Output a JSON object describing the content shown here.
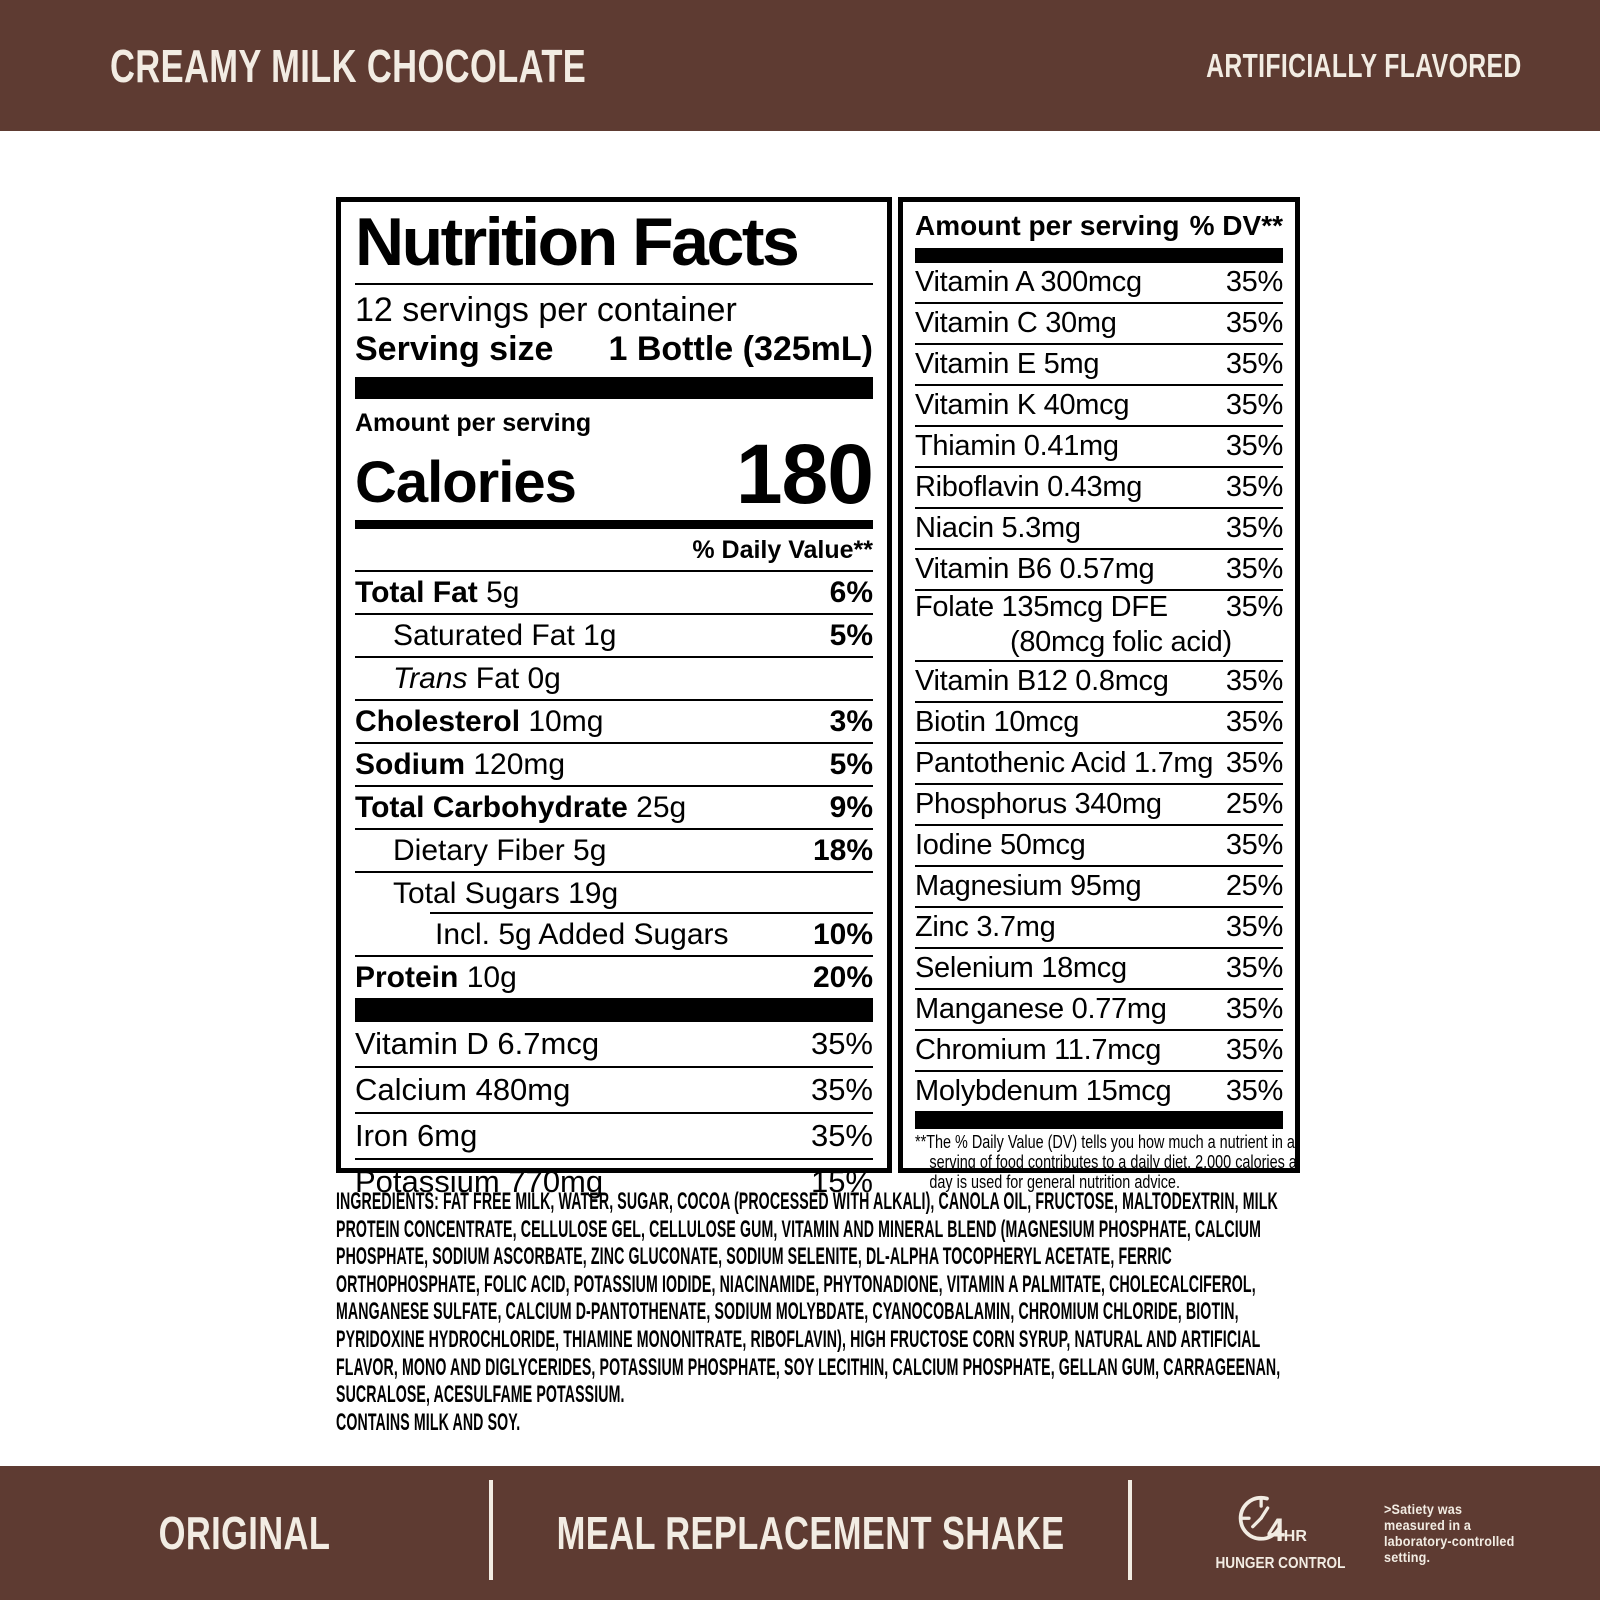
{
  "colors": {
    "brown": "#5E3B32",
    "cream": "#F2ECE3",
    "black": "#000000",
    "white": "#FFFFFF"
  },
  "header": {
    "flavor": "CREAMY MILK CHOCOLATE",
    "note": "ARTIFICIALLY FLAVORED"
  },
  "panel": {
    "title": "Nutrition Facts",
    "servings_per_container": "12 servings per container",
    "serving_size_label": "Serving size",
    "serving_size_value": "1 Bottle (325mL)",
    "amount_per_serving": "Amount per serving",
    "calories_label": "Calories",
    "calories_value": "180",
    "daily_value_header": "% Daily Value**",
    "left_rows": [
      {
        "b": "Total Fat",
        "r": " 5g",
        "dv": "6%",
        "ind": 0,
        "dvb": true
      },
      {
        "r": "Saturated Fat 1g",
        "dv": "5%",
        "ind": 1,
        "dvb": true
      },
      {
        "i": "Trans",
        "r": " Fat 0g",
        "dv": "",
        "ind": 1
      },
      {
        "b": "Cholesterol",
        "r": " 10mg",
        "dv": "3%",
        "ind": 0,
        "dvb": true
      },
      {
        "b": "Sodium",
        "r": " 120mg",
        "dv": "5%",
        "ind": 0,
        "dvb": true
      },
      {
        "b": "Total Carbohydrate",
        "r": " 25g",
        "dv": "9%",
        "ind": 0,
        "dvb": true
      },
      {
        "r": "Dietary Fiber 5g",
        "dv": "18%",
        "ind": 1,
        "dvb": true
      },
      {
        "r": "Total Sugars 19g",
        "dv": "",
        "ind": 1,
        "rule_indent": true
      },
      {
        "r": "Incl. 5g Added Sugars",
        "dv": "10%",
        "ind": 2,
        "dvb": true
      },
      {
        "b": "Protein",
        "r": " 10g",
        "dv": "20%",
        "ind": 0,
        "dvb": true
      }
    ],
    "left_vitamins": [
      {
        "label": "Vitamin D 6.7mcg",
        "dv": "35%"
      },
      {
        "label": "Calcium 480mg",
        "dv": "35%"
      },
      {
        "label": "Iron 6mg",
        "dv": "35%"
      },
      {
        "label": "Potassium 770mg",
        "dv": "15%"
      }
    ],
    "right_header": {
      "amount": "Amount per serving",
      "dv": "% DV**"
    },
    "right_rows": [
      {
        "label": "Vitamin A 300mcg",
        "dv": "35%"
      },
      {
        "label": "Vitamin C 30mg",
        "dv": "35%"
      },
      {
        "label": "Vitamin E 5mg",
        "dv": "35%"
      },
      {
        "label": "Vitamin K 40mcg",
        "dv": "35%"
      },
      {
        "label": "Thiamin 0.41mg",
        "dv": "35%"
      },
      {
        "label": "Riboflavin 0.43mg",
        "dv": "35%"
      },
      {
        "label": "Niacin 5.3mg",
        "dv": "35%"
      },
      {
        "label": "Vitamin B6 0.57mg",
        "dv": "35%"
      },
      {
        "label": "Folate 135mcg DFE",
        "sub": "(80mcg folic acid)",
        "dv": "35%"
      },
      {
        "label": "Vitamin B12 0.8mcg",
        "dv": "35%"
      },
      {
        "label": "Biotin 10mcg",
        "dv": "35%"
      },
      {
        "label": "Pantothenic Acid 1.7mg",
        "dv": "35%"
      },
      {
        "label": "Phosphorus 340mg",
        "dv": "25%"
      },
      {
        "label": "Iodine 50mcg",
        "dv": "35%"
      },
      {
        "label": "Magnesium 95mg",
        "dv": "25%"
      },
      {
        "label": "Zinc 3.7mg",
        "dv": "35%"
      },
      {
        "label": "Selenium 18mcg",
        "dv": "35%"
      },
      {
        "label": "Manganese 0.77mg",
        "dv": "35%"
      },
      {
        "label": "Chromium 11.7mcg",
        "dv": "35%"
      },
      {
        "label": "Molybdenum 15mcg",
        "dv": "35%"
      }
    ],
    "footnote": "**The % Daily Value (DV) tells you how much a nutrient in a serving of food contributes to a daily diet. 2,000 calories a day is used for general nutrition advice."
  },
  "ingredients": "INGREDIENTS: FAT FREE MILK, WATER, SUGAR, COCOA (PROCESSED WITH ALKALI), CANOLA OIL, FRUCTOSE, MALTODEXTRIN, MILK PROTEIN CONCENTRATE, CELLULOSE GEL, CELLULOSE GUM, VITAMIN AND MINERAL BLEND (MAGNESIUM PHOSPHATE, CALCIUM PHOSPHATE, SODIUM ASCORBATE, ZINC GLUCONATE, SODIUM SELENITE, DL-ALPHA TOCOPHERYL ACETATE, FERRIC ORTHOPHOSPHATE, FOLIC ACID, POTASSIUM IODIDE, NIACINAMIDE, PHYTONADIONE, VITAMIN A PALMITATE, CHOLECALCIFEROL, MANGANESE SULFATE, CALCIUM D-PANTOTHENATE, SODIUM MOLYBDATE, CYANOCOBALAMIN, CHROMIUM CHLORIDE, BIOTIN, PYRIDOXINE HYDROCHLORIDE, THIAMINE MONONITRATE, RIBOFLAVIN), HIGH FRUCTOSE CORN SYRUP, NATURAL AND ARTIFICIAL FLAVOR, MONO AND DIGLYCERIDES, POTASSIUM PHOSPHATE, SOY LECITHIN, CALCIUM PHOSPHATE, GELLAN GUM, CARRAGEENAN, SUCRALOSE, ACESULFAME POTASSIUM.\nCONTAINS MILK AND SOY.",
  "footer": {
    "left": "ORIGINAL",
    "center": "MEAL REPLACEMENT SHAKE",
    "hunger": {
      "hours": "4",
      "unit": "HR",
      "label": "HUNGER CONTROL",
      "note": ">Satiety was\nmeasured in a\nlaboratory-controlled\nsetting."
    }
  }
}
